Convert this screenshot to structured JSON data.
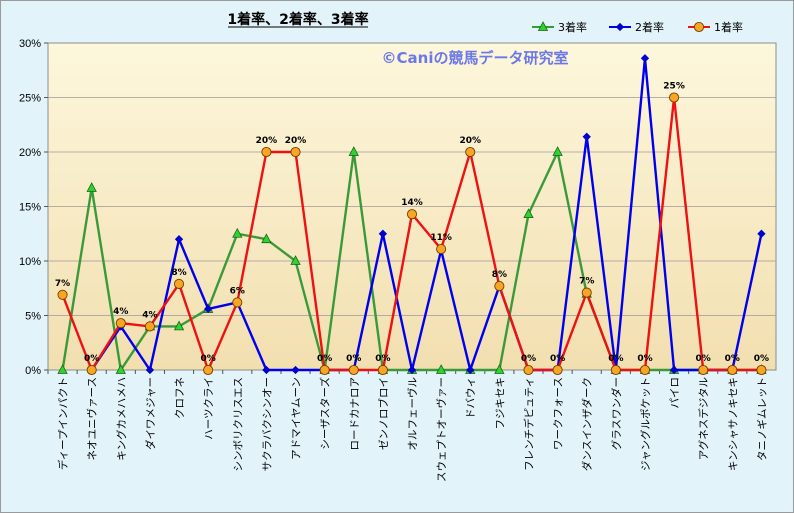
{
  "chart_data": {
    "type": "line",
    "title": "1着率、2着率、3着率",
    "watermark": "©Caniの競馬データ研究室",
    "ylim": [
      0,
      30
    ],
    "yticks": [
      "0%",
      "5%",
      "10%",
      "15%",
      "20%",
      "25%",
      "30%"
    ],
    "legend_position": "top-right",
    "grid": "horizontal",
    "categories": [
      "ディープインパクト",
      "ネオユニヴァース",
      "キングカメハメハ",
      "ダイワメジャー",
      "クロフネ",
      "ハーツクライ",
      "シンボリクリスエス",
      "サクラバクシンオー",
      "アドマイヤムーン",
      "シーザスターズ",
      "ロードカナロア",
      "ゼンノロブロイ",
      "オルフェーヴル",
      "スウェプトオーヴァー",
      "ドバウィ",
      "フジキセキ",
      "フレンチデピュティ",
      "ワークフォース",
      "ダンスインザダーク",
      "グラスワンダー",
      "ジャングルポケット",
      "パイロ",
      "アグネスデジタル",
      "キンシャサノキセキ",
      "タニノギムレット"
    ],
    "series": [
      {
        "name": "3着率",
        "color": "#3a9a3a",
        "marker": "triangle",
        "marker_fill": "#2bd62b",
        "values": [
          0,
          16.7,
          0,
          4,
          4,
          5.6,
          12.5,
          12,
          10,
          0,
          20,
          0,
          0,
          0,
          0,
          0,
          14.3,
          20,
          7,
          0,
          0,
          0,
          0,
          0,
          0
        ]
      },
      {
        "name": "2着率",
        "color": "#0000ee",
        "marker": "diamond",
        "marker_fill": "#0000cc",
        "values": [
          null,
          0,
          4,
          0,
          12,
          5.6,
          6.2,
          0,
          0,
          0,
          0,
          12.5,
          0,
          11,
          0,
          7.7,
          0,
          0,
          21.4,
          0,
          28.6,
          0,
          0,
          0,
          12.5
        ]
      },
      {
        "name": "1着率",
        "color": "#ee1111",
        "marker": "circle",
        "marker_fill": "#f5a623",
        "values": [
          6.9,
          0,
          4.3,
          4,
          7.9,
          0,
          6.2,
          20,
          20,
          0,
          0,
          0,
          14.3,
          11.1,
          20,
          7.7,
          0,
          0,
          7.1,
          0,
          0,
          25,
          0,
          0,
          0
        ],
        "data_labels": [
          "7%",
          "0%",
          "4%",
          "4%",
          "8%",
          "0%",
          "6%",
          "20%",
          "20%",
          "0%",
          "0%",
          "0%",
          "14%",
          "11%",
          "20%",
          "8%",
          "0%",
          "0%",
          "7%",
          "0%",
          "0%",
          "25%",
          "0%",
          "0%",
          "0%"
        ]
      }
    ]
  }
}
